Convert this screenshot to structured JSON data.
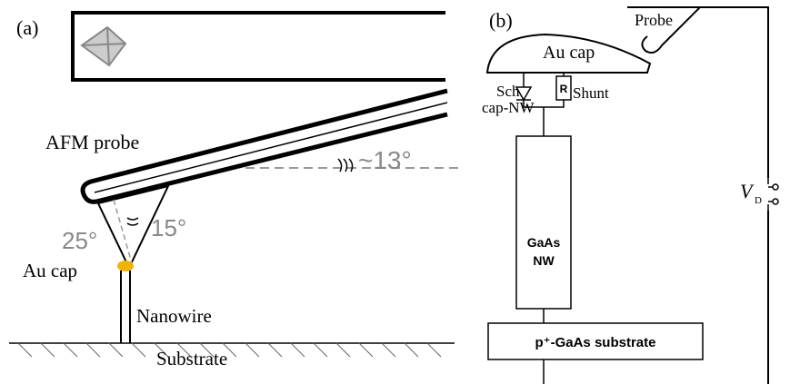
{
  "panel_a": {
    "label": "(a)",
    "probe_label": "AFM probe",
    "tilt_angle": "~13°",
    "left_angle": "25°",
    "right_angle": "15°",
    "cap_label": "Au cap",
    "wire_label": "Nanowire",
    "substrate_label": "Substrate"
  },
  "panel_b": {
    "label": "(b)",
    "probe_label": "Probe",
    "cap_label": "Au cap",
    "schottky_label": "Sch",
    "interface_label": "cap-NW",
    "resistor_symbol": "R",
    "shunt_label": "Shunt",
    "nanowire_label": [
      "GaAs",
      "NW"
    ],
    "substrate_label": "p⁺-GaAs substrate",
    "voltage_label": {
      "symbol": "V",
      "subscript": "D"
    }
  }
}
